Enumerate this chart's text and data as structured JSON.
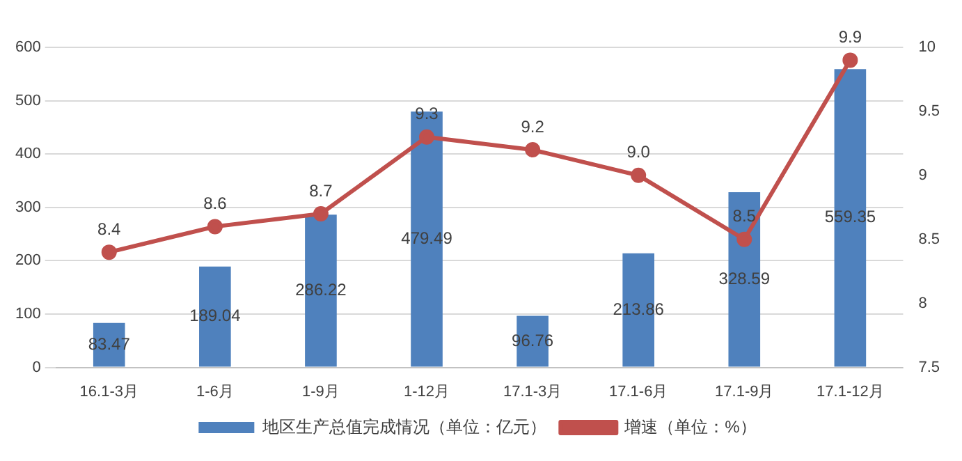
{
  "chart_data": {
    "type": "bar",
    "categories": [
      "16.1-3月",
      "1-6月",
      "1-9月",
      "1-12月",
      "17.1-3月",
      "17.1-6月",
      "17.1-9月",
      "17.1-12月"
    ],
    "series": [
      {
        "name": "地区生产总值完成情况（单位：亿元）",
        "color": "#4f81bd",
        "values": [
          83.47,
          189.04,
          286.22,
          479.49,
          96.76,
          213.86,
          328.59,
          559.35
        ],
        "value_labels": [
          "83.47",
          "189.04",
          "286.22",
          "479.49",
          "96.76",
          "213.86",
          "328.59",
          "559.35"
        ]
      },
      {
        "name": "增速（单位：%）",
        "type": "line",
        "axis": "y2",
        "color": "#c0504d",
        "values": [
          8.4,
          8.6,
          8.7,
          9.3,
          9.2,
          9.0,
          8.5,
          9.9
        ],
        "value_labels": [
          "8.4",
          "8.6",
          "8.7",
          "9.3",
          "9.2",
          "9.0",
          "8.5",
          "9.9"
        ]
      }
    ],
    "ylim": [
      0,
      600
    ],
    "yticks": [
      0,
      100,
      200,
      300,
      400,
      500,
      600
    ],
    "y2lim": [
      7.5,
      10
    ],
    "y2ticks": [
      7.5,
      8,
      8.5,
      9,
      9.5,
      10
    ],
    "grid": "y",
    "legend": "bottom",
    "marker": "circle",
    "line_style": "solid"
  }
}
